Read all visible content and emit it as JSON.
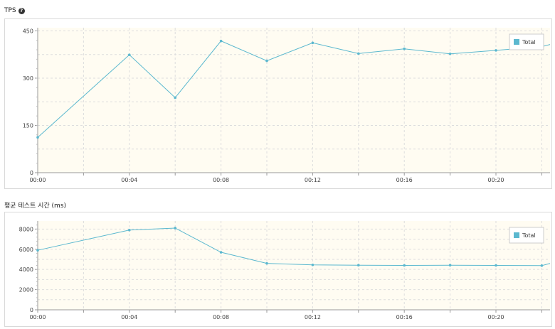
{
  "charts": [
    {
      "title": "TPS",
      "has_help_icon": true,
      "chart_data": {
        "type": "line",
        "title": "TPS",
        "x": [
          "00:00",
          "00:02",
          "00:04",
          "00:06",
          "00:08",
          "00:10",
          "00:12",
          "00:14",
          "00:16",
          "00:18",
          "00:20",
          "00:22"
        ],
        "xticks": [
          "00:00",
          "00:04",
          "00:08",
          "00:12",
          "00:16",
          "00:20"
        ],
        "yticks": [
          0,
          150,
          300,
          450
        ],
        "ylim": [
          0,
          460
        ],
        "series": [
          {
            "name": "Total",
            "color": "#5bb8cf",
            "values": [
              112,
              null,
              374,
              238,
              418,
              355,
              412,
              378,
              393,
              377,
              388,
              400
            ]
          }
        ],
        "legend": "top-right",
        "grid": true,
        "background": "#fffcf2"
      }
    },
    {
      "title": "평균 테스트 시간 (ms)",
      "has_help_icon": false,
      "chart_data": {
        "type": "line",
        "title": "평균 테스트 시간 (ms)",
        "x": [
          "00:00",
          "00:02",
          "00:04",
          "00:06",
          "00:08",
          "00:10",
          "00:12",
          "00:14",
          "00:16",
          "00:18",
          "00:20",
          "00:22"
        ],
        "xticks": [
          "00:00",
          "00:04",
          "00:08",
          "00:12",
          "00:16",
          "00:20"
        ],
        "yticks": [
          0,
          2000,
          4000,
          6000,
          8000
        ],
        "ylim": [
          0,
          8800
        ],
        "series": [
          {
            "name": "Total",
            "color": "#5bb8cf",
            "values": [
              5900,
              null,
              7900,
              8100,
              5700,
              4600,
              4450,
              4420,
              4400,
              4420,
              4400,
              4380
            ]
          }
        ],
        "legend": "top-right",
        "grid": true,
        "background": "#fffcf2"
      }
    }
  ]
}
